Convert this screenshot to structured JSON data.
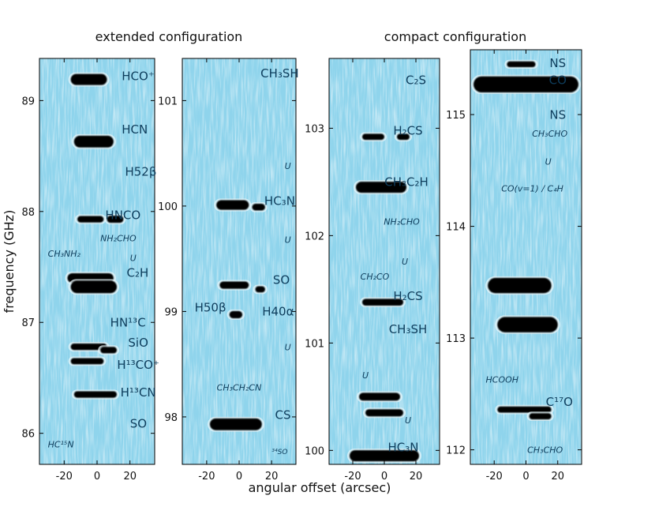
{
  "chart_data": {
    "type": "line_survey_spectrogram",
    "configs": [
      {
        "title": "extended configuration"
      },
      {
        "title": "compact configuration"
      }
    ],
    "ylabel": "frequency (GHz)",
    "xlabel": "angular offset (arcsec)",
    "xlim": [
      -35,
      35
    ],
    "xticks": [
      -20,
      0,
      20
    ],
    "xtick_labels": [
      "-20",
      "0",
      "20"
    ],
    "panels": [
      {
        "name": "panel-1",
        "ylim": [
          85.72,
          89.38
        ],
        "yticks": [
          86,
          87,
          88,
          89
        ],
        "ytick_labels": [
          "86",
          "87",
          "88",
          "89"
        ],
        "bands": [
          {
            "f": 89.19,
            "x0": -16,
            "x1": 6,
            "s": 1.0
          },
          {
            "f": 88.63,
            "x0": -14,
            "x1": 10,
            "s": 1.1
          },
          {
            "f": 87.93,
            "x0": -12,
            "x1": 4,
            "s": 0.35
          },
          {
            "f": 87.93,
            "x0": 6,
            "x1": 16,
            "s": 0.45
          },
          {
            "f": 87.4,
            "x0": -18,
            "x1": 10,
            "s": 0.8
          },
          {
            "f": 87.32,
            "x0": -16,
            "x1": 12,
            "s": 1.2
          },
          {
            "f": 86.78,
            "x0": -16,
            "x1": 6,
            "s": 0.35
          },
          {
            "f": 86.75,
            "x0": 2,
            "x1": 12,
            "s": 0.35
          },
          {
            "f": 86.65,
            "x0": -16,
            "x1": 4,
            "s": 0.3
          },
          {
            "f": 86.35,
            "x0": -14,
            "x1": 12,
            "s": 0.35
          }
        ],
        "labels": [
          {
            "text": "HCO⁺",
            "f": 89.22,
            "x": 15,
            "style": "big",
            "anchor": "start"
          },
          {
            "text": "HCN",
            "f": 88.74,
            "x": 15,
            "style": "big",
            "anchor": "start"
          },
          {
            "text": "H52β",
            "f": 88.36,
            "x": 17,
            "style": "big",
            "anchor": "start"
          },
          {
            "text": "HNCO",
            "f": 87.97,
            "x": 5,
            "style": "big",
            "anchor": "start"
          },
          {
            "text": "NH₂CHO",
            "f": 87.76,
            "x": 2,
            "style": "small",
            "anchor": "start"
          },
          {
            "text": "CH₃NH₂",
            "f": 87.62,
            "x": -20,
            "style": "small",
            "anchor": "middle"
          },
          {
            "text": "U",
            "f": 87.58,
            "x": 20,
            "style": "small",
            "anchor": "start"
          },
          {
            "text": "C₂H",
            "f": 87.45,
            "x": 18,
            "style": "big",
            "anchor": "start"
          },
          {
            "text": "HN¹³C",
            "f": 87.0,
            "x": 8,
            "style": "big",
            "anchor": "start"
          },
          {
            "text": "SiO",
            "f": 86.82,
            "x": 25,
            "style": "big",
            "anchor": "middle"
          },
          {
            "text": "H¹³CO⁺",
            "f": 86.62,
            "x": 25,
            "style": "big",
            "anchor": "middle"
          },
          {
            "text": "H¹³CN",
            "f": 86.37,
            "x": 25,
            "style": "big",
            "anchor": "middle"
          },
          {
            "text": "SO",
            "f": 86.09,
            "x": 20,
            "style": "big",
            "anchor": "start"
          },
          {
            "text": "HC¹⁵N",
            "f": 85.9,
            "x": -22,
            "style": "small",
            "anchor": "middle"
          }
        ]
      },
      {
        "name": "panel-2",
        "ylim": [
          97.55,
          101.4
        ],
        "yticks": [
          98,
          99,
          100,
          101
        ],
        "ytick_labels": [
          "98",
          "99",
          "100",
          "101"
        ],
        "bands": [
          {
            "f": 100.01,
            "x0": -14,
            "x1": 6,
            "s": 0.8
          },
          {
            "f": 99.99,
            "x0": 8,
            "x1": 16,
            "s": 0.4
          },
          {
            "f": 99.25,
            "x0": -12,
            "x1": 6,
            "s": 0.45
          },
          {
            "f": 99.21,
            "x0": 10,
            "x1": 16,
            "s": 0.3
          },
          {
            "f": 98.97,
            "x0": -6,
            "x1": 2,
            "s": 0.45
          },
          {
            "f": 97.93,
            "x0": -18,
            "x1": 14,
            "s": 1.1
          }
        ],
        "labels": [
          {
            "text": "CH₃SH",
            "f": 101.26,
            "x": 25,
            "style": "big",
            "anchor": "middle"
          },
          {
            "text": "U",
            "f": 100.38,
            "x": 30,
            "style": "small",
            "anchor": "middle"
          },
          {
            "text": "HC₃N",
            "f": 100.05,
            "x": 25,
            "style": "big",
            "anchor": "middle"
          },
          {
            "text": "U",
            "f": 99.68,
            "x": 30,
            "style": "small",
            "anchor": "middle"
          },
          {
            "text": "SO",
            "f": 99.3,
            "x": 26,
            "style": "big",
            "anchor": "middle"
          },
          {
            "text": "H50β",
            "f": 99.04,
            "x": -8,
            "style": "big",
            "anchor": "end"
          },
          {
            "text": "H40α",
            "f": 99.0,
            "x": 24,
            "style": "big",
            "anchor": "middle"
          },
          {
            "text": "U",
            "f": 98.66,
            "x": 30,
            "style": "small",
            "anchor": "middle"
          },
          {
            "text": "CH₃CH₂CN",
            "f": 98.28,
            "x": 0,
            "style": "small",
            "anchor": "middle"
          },
          {
            "text": "CS",
            "f": 98.02,
            "x": 27,
            "style": "big",
            "anchor": "middle"
          },
          {
            "text": "³⁴SO",
            "f": 97.67,
            "x": 25,
            "style": "tiny",
            "anchor": "middle"
          }
        ]
      },
      {
        "name": "panel-3",
        "ylim": [
          99.87,
          103.65
        ],
        "yticks": [
          100,
          101,
          102,
          103
        ],
        "ytick_labels": [
          "100",
          "101",
          "102",
          "103"
        ],
        "bands": [
          {
            "f": 102.92,
            "x0": -14,
            "x1": 0,
            "s": 0.3
          },
          {
            "f": 102.92,
            "x0": 8,
            "x1": 16,
            "s": 0.3
          },
          {
            "f": 102.45,
            "x0": -18,
            "x1": 14,
            "s": 1.0
          },
          {
            "f": 101.38,
            "x0": -14,
            "x1": 12,
            "s": 0.4
          },
          {
            "f": 100.5,
            "x0": -16,
            "x1": 10,
            "s": 0.55
          },
          {
            "f": 100.35,
            "x0": -12,
            "x1": 12,
            "s": 0.45
          },
          {
            "f": 99.95,
            "x0": -22,
            "x1": 22,
            "s": 1.0
          }
        ],
        "labels": [
          {
            "text": "C₂S",
            "f": 103.45,
            "x": 20,
            "style": "big",
            "anchor": "middle"
          },
          {
            "text": "H₂CS",
            "f": 102.98,
            "x": 15,
            "style": "big",
            "anchor": "middle"
          },
          {
            "text": "CH₃C₂H",
            "f": 102.5,
            "x": 14,
            "style": "big",
            "anchor": "middle"
          },
          {
            "text": "NH₂CHO",
            "f": 102.13,
            "x": 11,
            "style": "small",
            "anchor": "middle"
          },
          {
            "text": "U",
            "f": 101.76,
            "x": 13,
            "style": "small",
            "anchor": "middle"
          },
          {
            "text": "CH₂CO",
            "f": 101.62,
            "x": -6,
            "style": "small",
            "anchor": "middle"
          },
          {
            "text": "H₂CS",
            "f": 101.44,
            "x": 15,
            "style": "big",
            "anchor": "middle"
          },
          {
            "text": "CH₃SH",
            "f": 101.13,
            "x": 15,
            "style": "big",
            "anchor": "middle"
          },
          {
            "text": "U",
            "f": 100.7,
            "x": -12,
            "style": "small",
            "anchor": "middle"
          },
          {
            "text": "U",
            "f": 100.28,
            "x": 15,
            "style": "small",
            "anchor": "middle"
          },
          {
            "text": "HC₃N",
            "f": 100.03,
            "x": 12,
            "style": "big",
            "anchor": "middle"
          }
        ]
      },
      {
        "name": "panel-4",
        "ylim": [
          111.87,
          115.58
        ],
        "yticks": [
          112,
          113,
          114,
          115
        ],
        "ytick_labels": [
          "112",
          "113",
          "114",
          "115"
        ],
        "bands": [
          {
            "f": 115.27,
            "x0": -33,
            "x1": 33,
            "s": 1.7
          },
          {
            "f": 115.45,
            "x0": -12,
            "x1": 6,
            "s": 0.25
          },
          {
            "f": 113.47,
            "x0": -24,
            "x1": 16,
            "s": 1.6
          },
          {
            "f": 113.12,
            "x0": -18,
            "x1": 20,
            "s": 1.6
          },
          {
            "f": 112.36,
            "x0": -18,
            "x1": 16,
            "s": 0.3
          },
          {
            "f": 112.3,
            "x0": 2,
            "x1": 16,
            "s": 0.3
          }
        ],
        "labels": [
          {
            "text": "NS",
            "f": 115.46,
            "x": 20,
            "style": "big",
            "anchor": "middle"
          },
          {
            "text": "CO",
            "f": 115.31,
            "x": 20,
            "style": "big",
            "anchor": "middle"
          },
          {
            "text": "NS",
            "f": 115.0,
            "x": 20,
            "style": "big",
            "anchor": "middle"
          },
          {
            "text": "CH₃CHO",
            "f": 114.83,
            "x": 15,
            "style": "small",
            "anchor": "middle"
          },
          {
            "text": "U",
            "f": 114.58,
            "x": 14,
            "style": "small",
            "anchor": "middle"
          },
          {
            "text": "CO(v=1) / C₄H",
            "f": 114.34,
            "x": 4,
            "style": "small",
            "anchor": "middle"
          },
          {
            "text": "HCOOH",
            "f": 112.63,
            "x": -15,
            "style": "small",
            "anchor": "middle"
          },
          {
            "text": "C¹⁷O",
            "f": 112.43,
            "x": 21,
            "style": "big",
            "anchor": "middle"
          },
          {
            "text": "CH₃CHO",
            "f": 112.0,
            "x": 12,
            "style": "small",
            "anchor": "middle"
          }
        ]
      }
    ]
  }
}
